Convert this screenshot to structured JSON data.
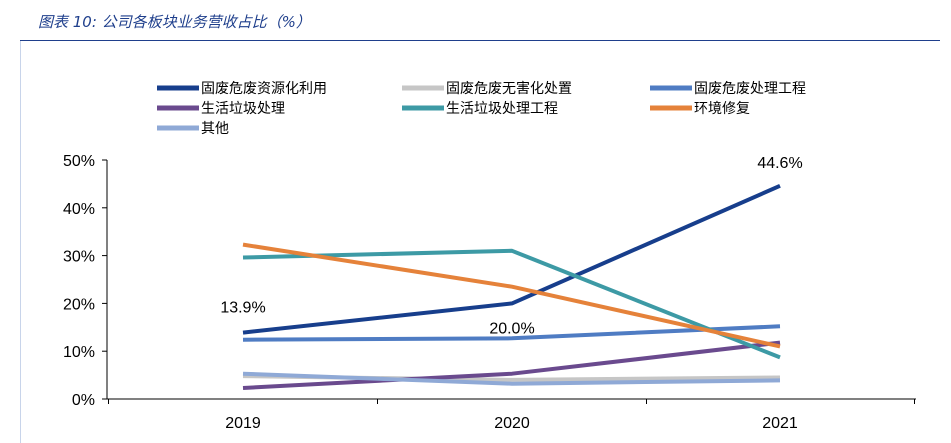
{
  "header": {
    "title": "图表 10:  公司各板块业务营收占比（%）"
  },
  "chart_data": {
    "type": "line",
    "title": "",
    "xlabel": "",
    "ylabel": "",
    "categories": [
      "2019",
      "2020",
      "2021"
    ],
    "ylim": [
      0,
      50
    ],
    "y_ticks": [
      "0%",
      "10%",
      "20%",
      "30%",
      "40%",
      "50%"
    ],
    "grid": false,
    "legend_position": "top",
    "series": [
      {
        "name": "固废危废资源化利用",
        "color": "#173e8c",
        "values": [
          13.9,
          20.0,
          44.6
        ]
      },
      {
        "name": "固废危废无害化处置",
        "color": "#c6c6c6",
        "values": [
          4.8,
          4.0,
          4.5
        ]
      },
      {
        "name": "固废危废处理工程",
        "color": "#4f7cc3",
        "values": [
          12.4,
          12.7,
          15.2
        ]
      },
      {
        "name": "生活垃圾处理",
        "color": "#6a4a8e",
        "values": [
          2.3,
          5.3,
          11.8
        ]
      },
      {
        "name": "生活垃圾处理工程",
        "color": "#3d9aa5",
        "values": [
          29.6,
          31.0,
          8.7
        ]
      },
      {
        "name": "环境修复",
        "color": "#e5823a",
        "values": [
          32.3,
          23.5,
          11.0
        ]
      },
      {
        "name": "其他",
        "color": "#8fa9d6",
        "values": [
          5.3,
          3.2,
          3.9
        ]
      }
    ],
    "data_labels": [
      {
        "series": "固废危废资源化利用",
        "category": "2019",
        "text": "13.9%"
      },
      {
        "series": "固废危废资源化利用",
        "category": "2020",
        "text": "20.0%"
      },
      {
        "series": "固废危废资源化利用",
        "category": "2021",
        "text": "44.6%"
      }
    ]
  }
}
